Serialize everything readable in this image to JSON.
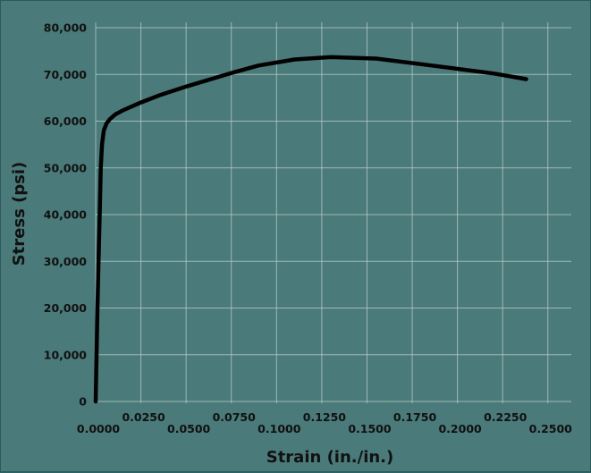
{
  "chart_data": {
    "type": "line",
    "title": "",
    "xlabel": "Strain (in./in.)",
    "ylabel": "Stress (psi)",
    "xlim": [
      0,
      0.26
    ],
    "ylim": [
      0,
      80000
    ],
    "grid": true,
    "legend": "none",
    "x_ticks": [
      {
        "value": 0.0,
        "label": "0.0000",
        "row": "lower"
      },
      {
        "value": 0.025,
        "label": "0.0250",
        "row": "upper"
      },
      {
        "value": 0.05,
        "label": "0.0500",
        "row": "lower"
      },
      {
        "value": 0.075,
        "label": "0.0750",
        "row": "upper"
      },
      {
        "value": 0.1,
        "label": "0.1000",
        "row": "lower"
      },
      {
        "value": 0.125,
        "label": "0.1250",
        "row": "upper"
      },
      {
        "value": 0.15,
        "label": "0.1500",
        "row": "lower"
      },
      {
        "value": 0.175,
        "label": "0.1750",
        "row": "upper"
      },
      {
        "value": 0.2,
        "label": "0.2000",
        "row": "lower"
      },
      {
        "value": 0.225,
        "label": "0.2250",
        "row": "upper"
      },
      {
        "value": 0.25,
        "label": "0.2500",
        "row": "lower"
      }
    ],
    "y_ticks": [
      {
        "value": 0,
        "label": "0"
      },
      {
        "value": 10000,
        "label": "10,000"
      },
      {
        "value": 20000,
        "label": "20,000"
      },
      {
        "value": 30000,
        "label": "30,000"
      },
      {
        "value": 40000,
        "label": "40,000"
      },
      {
        "value": 50000,
        "label": "50,000"
      },
      {
        "value": 60000,
        "label": "60,000"
      },
      {
        "value": 70000,
        "label": "70,000"
      },
      {
        "value": 80000,
        "label": "80,000"
      }
    ],
    "series": [
      {
        "color": "#000000",
        "points": [
          [
            0.0,
            0
          ],
          [
            0.0005,
            10000
          ],
          [
            0.001,
            20000
          ],
          [
            0.0016,
            30000
          ],
          [
            0.0022,
            40000
          ],
          [
            0.0028,
            50000
          ],
          [
            0.0035,
            55000
          ],
          [
            0.0045,
            58000
          ],
          [
            0.006,
            59500
          ],
          [
            0.008,
            60500
          ],
          [
            0.011,
            61500
          ],
          [
            0.015,
            62300
          ],
          [
            0.025,
            64000
          ],
          [
            0.035,
            65500
          ],
          [
            0.05,
            67400
          ],
          [
            0.075,
            70300
          ],
          [
            0.09,
            71900
          ],
          [
            0.11,
            73200
          ],
          [
            0.13,
            73700
          ],
          [
            0.155,
            73400
          ],
          [
            0.18,
            72200
          ],
          [
            0.2,
            71200
          ],
          [
            0.22,
            70200
          ],
          [
            0.238,
            69000
          ]
        ]
      }
    ]
  }
}
